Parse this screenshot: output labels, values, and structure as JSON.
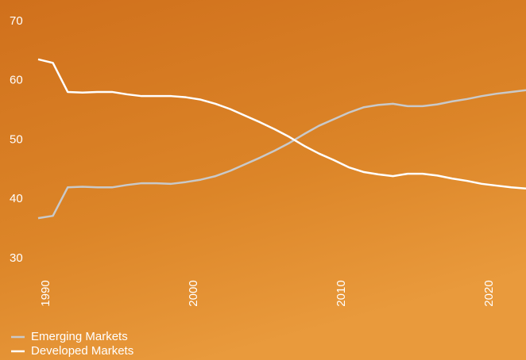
{
  "chart_data": {
    "type": "line",
    "x": [
      1990,
      1991,
      1992,
      1993,
      1994,
      1995,
      1996,
      1997,
      1998,
      1999,
      2000,
      2001,
      2002,
      2003,
      2004,
      2005,
      2006,
      2007,
      2008,
      2009,
      2010,
      2011,
      2012,
      2013,
      2014,
      2015,
      2016,
      2017,
      2018,
      2019,
      2020,
      2021,
      2022,
      2023
    ],
    "series": [
      {
        "name": "Emerging Markets",
        "color": "#c9c9c9",
        "values": [
          36.8,
          37.2,
          42.0,
          42.1,
          42.0,
          42.0,
          42.4,
          42.7,
          42.7,
          42.6,
          42.9,
          43.3,
          43.9,
          44.8,
          45.9,
          47.0,
          48.2,
          49.5,
          51.0,
          52.4,
          53.5,
          54.6,
          55.5,
          55.9,
          56.1,
          55.7,
          55.7,
          56.0,
          56.5,
          56.9,
          57.4,
          57.8,
          58.1,
          58.4
        ]
      },
      {
        "name": "Developed Markets",
        "color": "#ffffff",
        "values": [
          63.6,
          63.0,
          58.1,
          58.0,
          58.1,
          58.1,
          57.7,
          57.4,
          57.4,
          57.4,
          57.2,
          56.8,
          56.1,
          55.2,
          54.1,
          53.0,
          51.8,
          50.5,
          49.0,
          47.7,
          46.6,
          45.4,
          44.6,
          44.2,
          43.9,
          44.3,
          44.3,
          44.0,
          43.5,
          43.1,
          42.6,
          42.3,
          42.0,
          41.8
        ]
      }
    ],
    "xlim": [
      1990,
      2023
    ],
    "xticks": [
      1990,
      2000,
      2010,
      2020
    ],
    "ylim": [
      30,
      70
    ],
    "yticks": [
      30,
      40,
      50,
      60,
      70
    ],
    "grid": false,
    "legend": "bottom-left"
  }
}
